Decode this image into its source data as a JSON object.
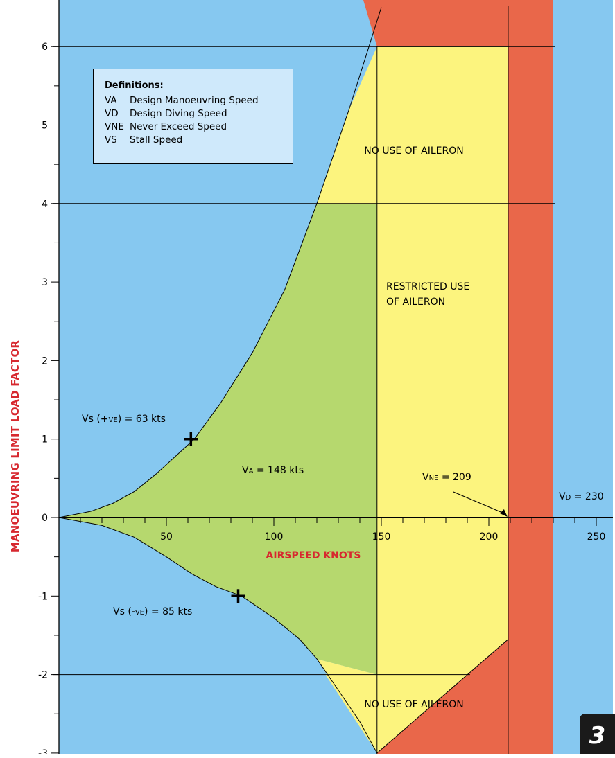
{
  "chart_data": {
    "type": "area",
    "title": "",
    "xlabel": "AIRSPEED KNOTS",
    "ylabel": "MANOEUVRING LIMIT LOAD FACTOR",
    "xlim": [
      0,
      250
    ],
    "ylim": [
      -3,
      6.5
    ],
    "x_ticks": [
      50,
      100,
      150,
      200,
      250
    ],
    "x_tick_labels": [
      "50",
      "100",
      "150",
      "200",
      "250"
    ],
    "y_ticks": [
      -3,
      -2,
      -1,
      0,
      1,
      2,
      3,
      4,
      5,
      6
    ],
    "y_tick_labels": [
      "-3",
      "-2",
      "-1",
      "0",
      "1",
      "2",
      "3",
      "4",
      "5",
      "6"
    ],
    "positive_stall_curve": {
      "x": [
        0,
        15,
        25,
        35,
        45,
        55,
        63,
        75,
        90,
        105,
        120,
        135,
        150
      ],
      "y": [
        0,
        0.08,
        0.18,
        0.33,
        0.55,
        0.8,
        1.0,
        1.45,
        2.1,
        2.9,
        4.0,
        5.2,
        6.5
      ]
    },
    "negative_stall_curve": {
      "x": [
        0,
        20,
        35,
        50,
        62,
        73,
        85,
        100,
        112,
        120,
        130,
        140,
        148
      ],
      "y": [
        0,
        -0.1,
        -0.25,
        -0.5,
        -0.72,
        -0.88,
        -1.0,
        -1.28,
        -1.55,
        -1.8,
        -2.2,
        -2.6,
        -3.0
      ]
    },
    "green_region": {
      "x_max": 148,
      "y_min": -2,
      "y_max": 4
    },
    "yellow_region": {
      "x_min": 148,
      "x_max": 209,
      "y_top": 6,
      "bottom_edge": [
        [
          148,
          -3
        ],
        [
          209,
          -1.55
        ]
      ]
    },
    "red_region": {
      "x_min": 209,
      "x_max": 230
    },
    "vertical_lines_x": [
      148,
      209
    ],
    "horizontal_lines_y": [
      -2,
      4,
      6
    ],
    "markers": [
      {
        "label": "Vs (+ve) = 63 kts",
        "x": 63,
        "y": 1
      },
      {
        "label": "Vs (-ve) = 85 kts",
        "x": 85,
        "y": -1
      }
    ],
    "speeds": {
      "VA": 148,
      "VNE": 209,
      "VD": 230
    },
    "colors": {
      "stall": "#86c8f0",
      "green": "#b6d86e",
      "yellow": "#fcf47e",
      "red": "#e9674a",
      "axis_label": "#d7282f"
    }
  },
  "annotations": {
    "vs_pos": {
      "base": "Vs",
      "paren_open": " (+",
      "small": "ve",
      "paren_close": ") = 63 kts"
    },
    "vs_neg": {
      "base": "Vs",
      "paren_open": " (-",
      "small": "ve",
      "paren_close": ") = 85 kts"
    },
    "va": {
      "base": "V",
      "sub": "A",
      "rest": " = 148 kts"
    },
    "vne": {
      "base": "V",
      "sub": "NE",
      "rest": " = 209"
    },
    "vd": {
      "base": "V",
      "sub": "D",
      "rest": " = 230"
    }
  },
  "regions": {
    "no_aileron_top": "NO USE OF AILERON",
    "restricted_line1": "RESTRICTED USE",
    "restricted_line2": "OF AILERON",
    "no_aileron_bottom": "NO USE OF AILERON"
  },
  "definitions": {
    "title": "Definitions:",
    "items": [
      {
        "abbr": "VA",
        "text": "Design Manoeuvring Speed"
      },
      {
        "abbr": "VD",
        "text": "Design Diving Speed"
      },
      {
        "abbr": "VNE",
        "text": "Never Exceed Speed"
      },
      {
        "abbr": "VS",
        "text": "Stall Speed"
      }
    ]
  },
  "page_badge": "3"
}
